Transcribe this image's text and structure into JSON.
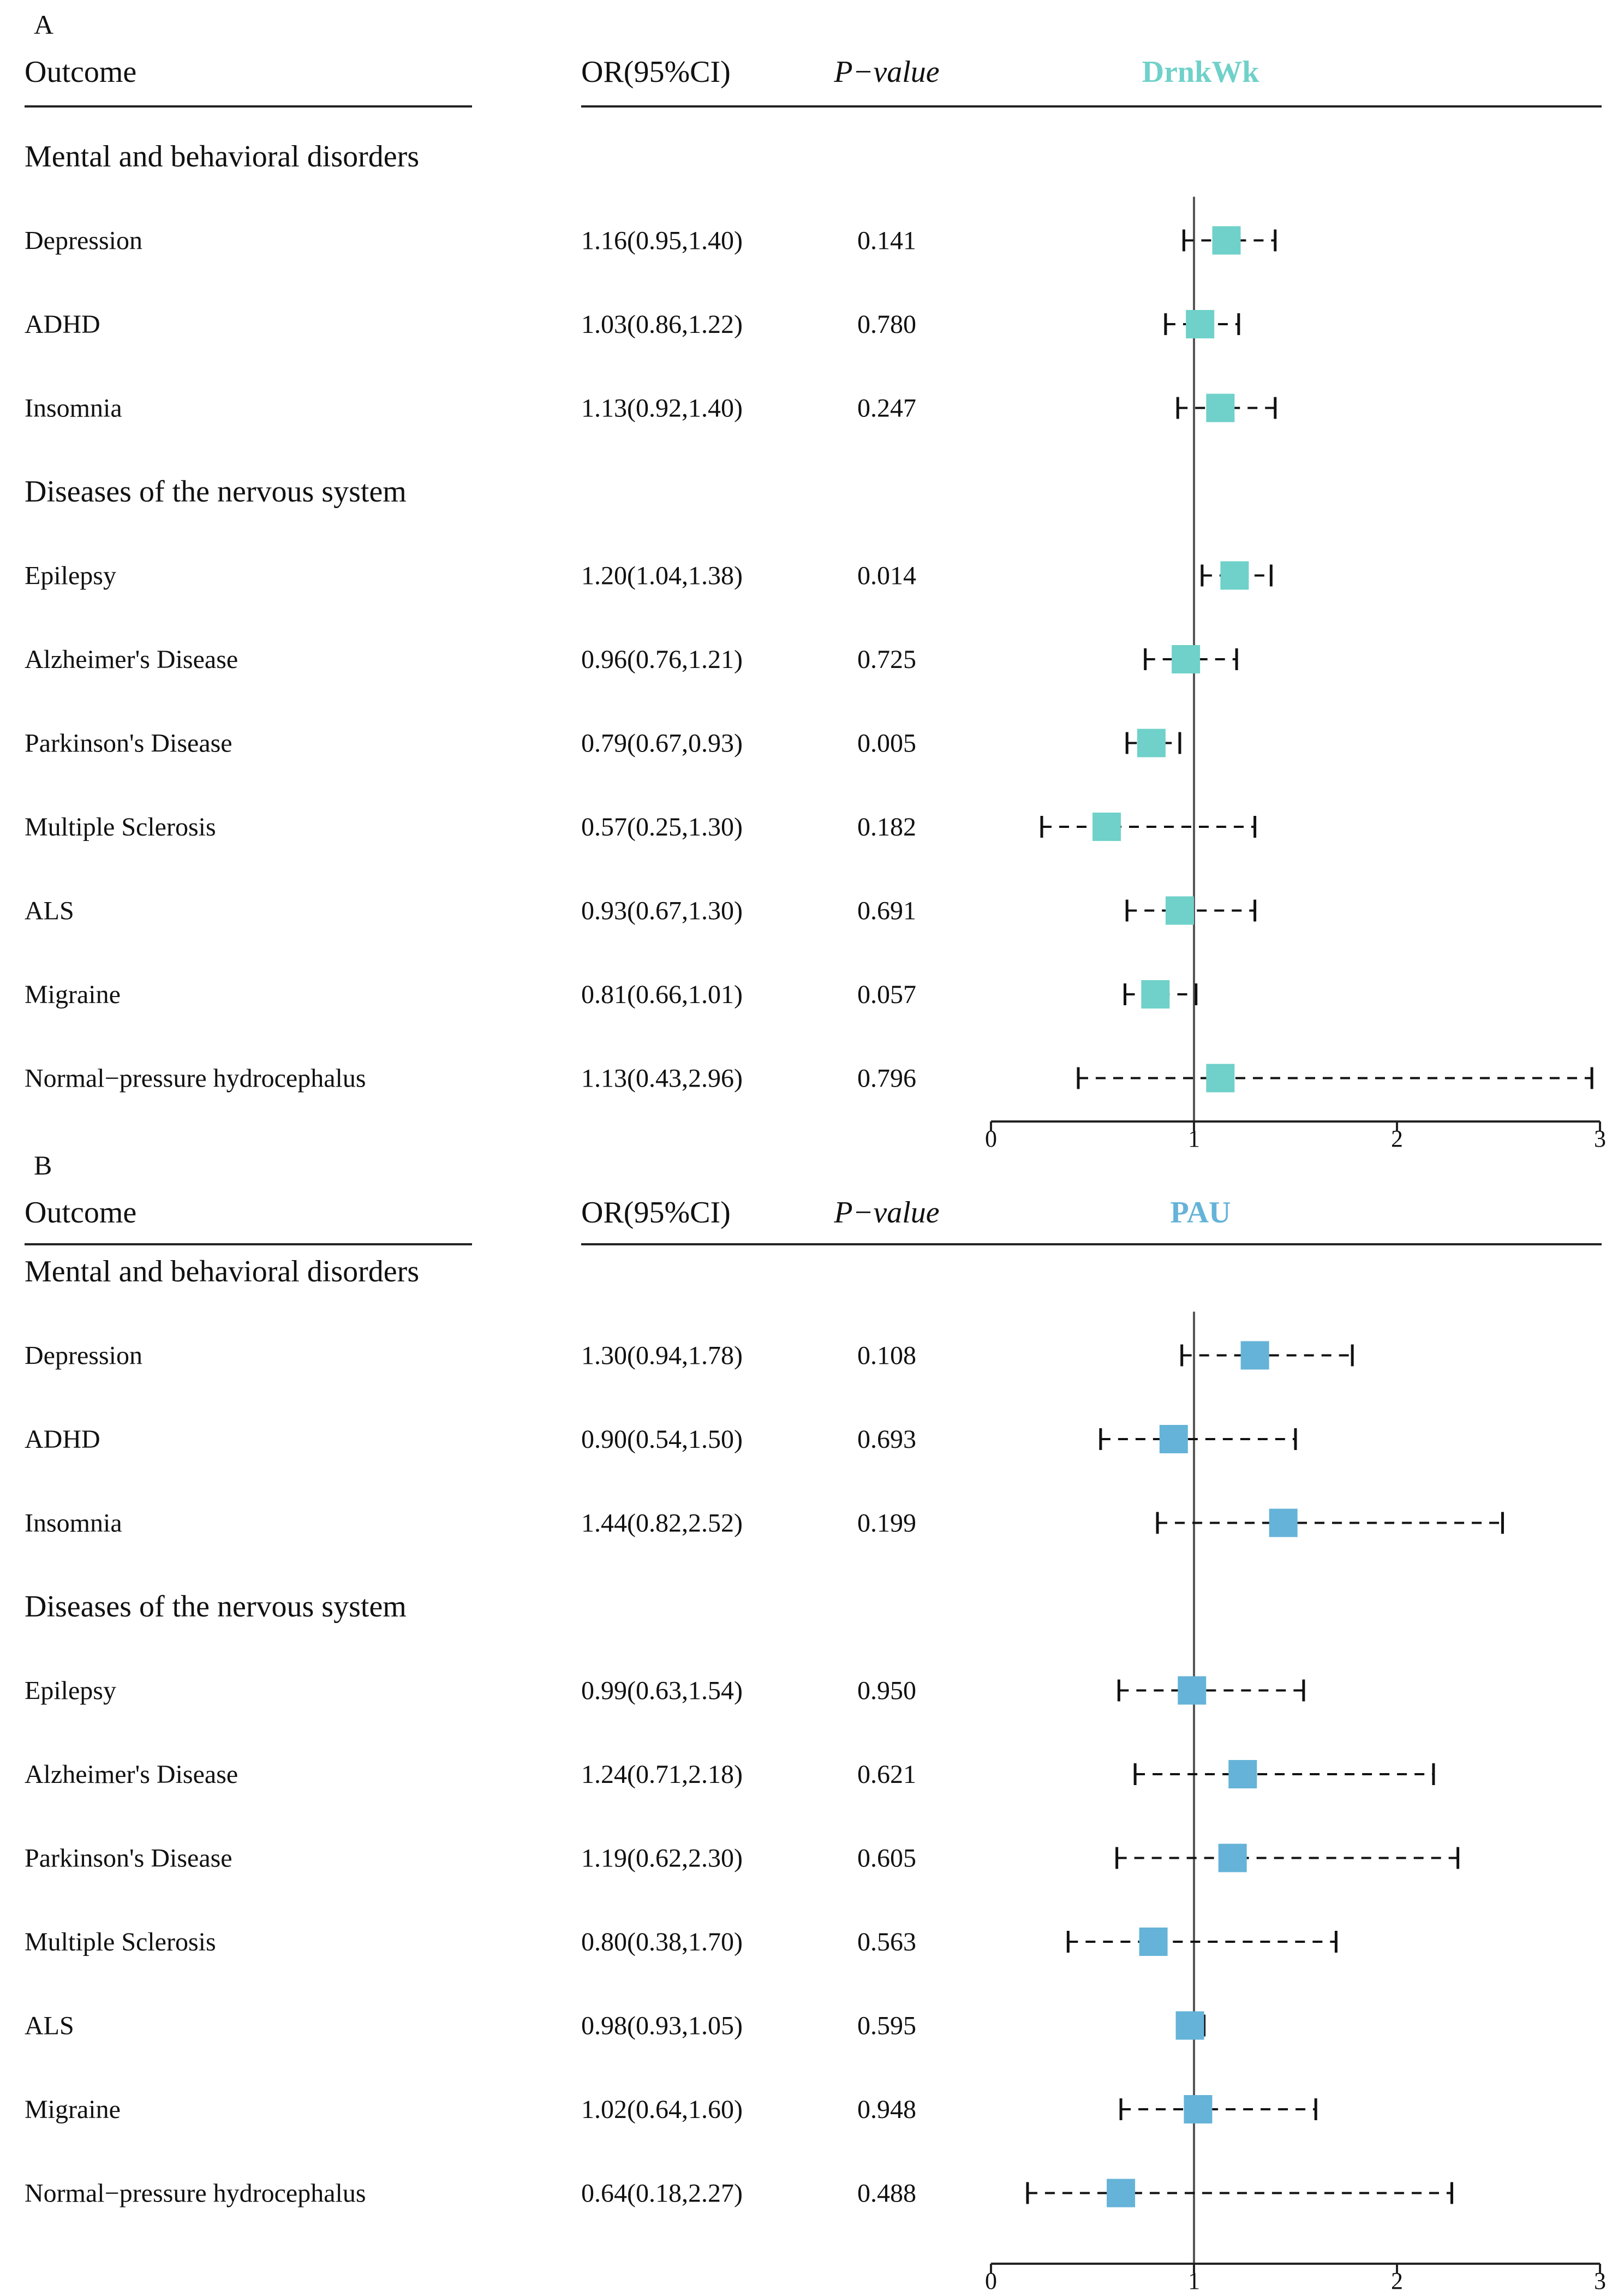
{
  "chart_data": [
    {
      "type": "forest",
      "panel_label": "A",
      "exposure": "DrnkWk",
      "exposure_color": "#6fd1c9",
      "headers": {
        "outcome": "Outcome",
        "or": "OR(95%CI)",
        "p": "P−value"
      },
      "xlim": [
        0,
        3
      ],
      "xticks": [
        0,
        1,
        2,
        3
      ],
      "reference_line": 1,
      "rows": [
        {
          "kind": "category",
          "label": "Mental and behavioral disorders"
        },
        {
          "kind": "item",
          "label": "Depression",
          "or_text": "1.16(0.95,1.40)",
          "p_text": "0.141",
          "or": 1.16,
          "lo": 0.95,
          "hi": 1.4
        },
        {
          "kind": "item",
          "label": "ADHD",
          "or_text": "1.03(0.86,1.22)",
          "p_text": "0.780",
          "or": 1.03,
          "lo": 0.86,
          "hi": 1.22
        },
        {
          "kind": "item",
          "label": "Insomnia",
          "or_text": "1.13(0.92,1.40)",
          "p_text": "0.247",
          "or": 1.13,
          "lo": 0.92,
          "hi": 1.4
        },
        {
          "kind": "category",
          "label": "Diseases of the nervous system"
        },
        {
          "kind": "item",
          "label": "Epilepsy",
          "or_text": "1.20(1.04,1.38)",
          "p_text": "0.014",
          "or": 1.2,
          "lo": 1.04,
          "hi": 1.38
        },
        {
          "kind": "item",
          "label": "Alzheimer's Disease",
          "or_text": "0.96(0.76,1.21)",
          "p_text": "0.725",
          "or": 0.96,
          "lo": 0.76,
          "hi": 1.21
        },
        {
          "kind": "item",
          "label": "Parkinson's Disease",
          "or_text": "0.79(0.67,0.93)",
          "p_text": "0.005",
          "or": 0.79,
          "lo": 0.67,
          "hi": 0.93
        },
        {
          "kind": "item",
          "label": "Multiple Sclerosis",
          "or_text": "0.57(0.25,1.30)",
          "p_text": "0.182",
          "or": 0.57,
          "lo": 0.25,
          "hi": 1.3
        },
        {
          "kind": "item",
          "label": "ALS",
          "or_text": "0.93(0.67,1.30)",
          "p_text": "0.691",
          "or": 0.93,
          "lo": 0.67,
          "hi": 1.3
        },
        {
          "kind": "item",
          "label": "Migraine",
          "or_text": "0.81(0.66,1.01)",
          "p_text": "0.057",
          "or": 0.81,
          "lo": 0.66,
          "hi": 1.01
        },
        {
          "kind": "item",
          "label": "Normal−pressure hydrocephalus",
          "or_text": "1.13(0.43,2.96)",
          "p_text": "0.796",
          "or": 1.13,
          "lo": 0.43,
          "hi": 2.96
        }
      ]
    },
    {
      "type": "forest",
      "panel_label": "B",
      "exposure": "PAU",
      "exposure_color": "#65b3d8",
      "headers": {
        "outcome": "Outcome",
        "or": "OR(95%CI)",
        "p": "P−value"
      },
      "xlim": [
        0,
        3
      ],
      "xticks": [
        0,
        1,
        2,
        3
      ],
      "reference_line": 1,
      "rows": [
        {
          "kind": "category",
          "label": "Mental and behavioral disorders"
        },
        {
          "kind": "item",
          "label": "Depression",
          "or_text": "1.30(0.94,1.78)",
          "p_text": "0.108",
          "or": 1.3,
          "lo": 0.94,
          "hi": 1.78
        },
        {
          "kind": "item",
          "label": "ADHD",
          "or_text": "0.90(0.54,1.50)",
          "p_text": "0.693",
          "or": 0.9,
          "lo": 0.54,
          "hi": 1.5
        },
        {
          "kind": "item",
          "label": "Insomnia",
          "or_text": "1.44(0.82,2.52)",
          "p_text": "0.199",
          "or": 1.44,
          "lo": 0.82,
          "hi": 2.52
        },
        {
          "kind": "category",
          "label": "Diseases of the nervous system"
        },
        {
          "kind": "item",
          "label": "Epilepsy",
          "or_text": "0.99(0.63,1.54)",
          "p_text": "0.950",
          "or": 0.99,
          "lo": 0.63,
          "hi": 1.54
        },
        {
          "kind": "item",
          "label": "Alzheimer's Disease",
          "or_text": "1.24(0.71,2.18)",
          "p_text": "0.621",
          "or": 1.24,
          "lo": 0.71,
          "hi": 2.18
        },
        {
          "kind": "item",
          "label": "Parkinson's Disease",
          "or_text": "1.19(0.62,2.30)",
          "p_text": "0.605",
          "or": 1.19,
          "lo": 0.62,
          "hi": 2.3
        },
        {
          "kind": "item",
          "label": "Multiple Sclerosis",
          "or_text": "0.80(0.38,1.70)",
          "p_text": "0.563",
          "or": 0.8,
          "lo": 0.38,
          "hi": 1.7
        },
        {
          "kind": "item",
          "label": "ALS",
          "or_text": "0.98(0.93,1.05)",
          "p_text": "0.595",
          "or": 0.98,
          "lo": 0.93,
          "hi": 1.05
        },
        {
          "kind": "item",
          "label": "Migraine",
          "or_text": "1.02(0.64,1.60)",
          "p_text": "0.948",
          "or": 1.02,
          "lo": 0.64,
          "hi": 1.6
        },
        {
          "kind": "item",
          "label": "Normal−pressure hydrocephalus",
          "or_text": "0.64(0.18,2.27)",
          "p_text": "0.488",
          "or": 0.64,
          "lo": 0.18,
          "hi": 2.27
        }
      ]
    }
  ]
}
